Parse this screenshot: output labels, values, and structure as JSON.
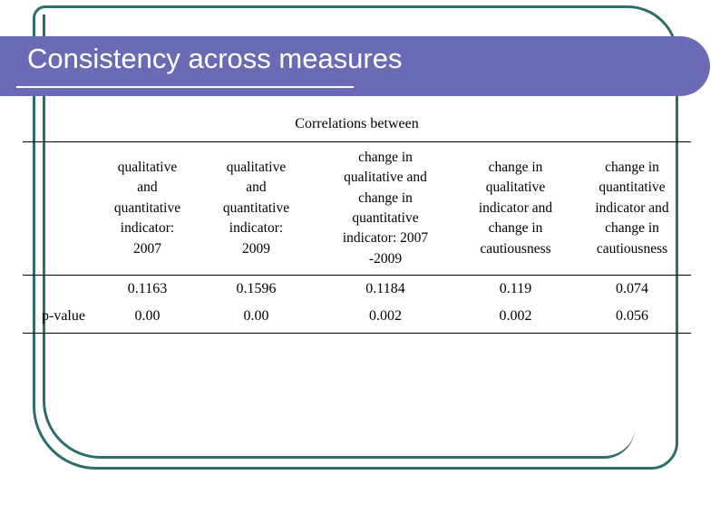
{
  "slide": {
    "title": "Consistency across measures"
  },
  "colors": {
    "banner": "#6a6bb4",
    "frame": "#2f6d6d",
    "title-text": "#ffffff",
    "rule": "#000000"
  },
  "table": {
    "caption": "Correlations between",
    "columns": [
      "qualitative\nand\nquantitative\nindicator:\n2007",
      "qualitative\nand\nquantitative\nindicator:\n2009",
      "change in\nqualitative and\nchange in\nquantitative\nindicator: 2007\n-2009",
      "change in\nqualitative\nindicator and\nchange in\ncautiousness",
      "change in\nquantitative\nindicator and\nchange in\ncautiousness"
    ],
    "rows": [
      {
        "label": "",
        "values": [
          "0.1163",
          "0.1596",
          "0.1184",
          "0.119",
          "0.074"
        ]
      },
      {
        "label": "p-value",
        "values": [
          "0.00",
          "0.00",
          "0.002",
          "0.002",
          "0.056"
        ]
      }
    ]
  }
}
